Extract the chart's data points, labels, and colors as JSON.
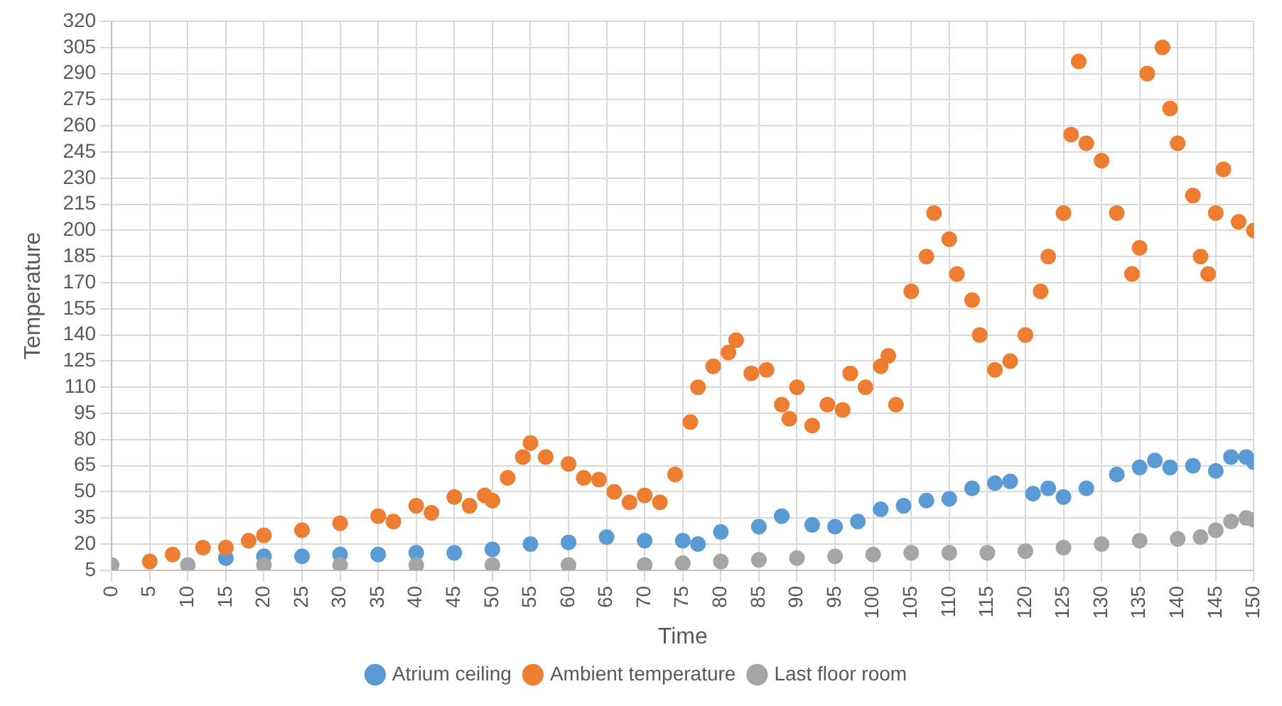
{
  "chart_data": {
    "type": "scatter",
    "xlabel": "Time",
    "ylabel": "Temperature",
    "xlim": [
      0,
      150
    ],
    "xticks": [
      0,
      5,
      10,
      15,
      20,
      25,
      30,
      35,
      40,
      45,
      50,
      55,
      60,
      65,
      70,
      75,
      80,
      85,
      90,
      95,
      100,
      105,
      110,
      115,
      120,
      125,
      130,
      135,
      140,
      145,
      150
    ],
    "ylim": [
      5,
      320
    ],
    "yticks": [
      5,
      20,
      35,
      50,
      65,
      80,
      95,
      110,
      125,
      140,
      155,
      170,
      185,
      200,
      215,
      230,
      245,
      260,
      275,
      290,
      305,
      320
    ],
    "grid": true,
    "legend": "bottom",
    "marker": "circle",
    "series": [
      {
        "name": "Atrium ceiling",
        "color": "#5b9bd5",
        "x": [
          15,
          20,
          25,
          30,
          35,
          40,
          45,
          50,
          55,
          60,
          65,
          70,
          75,
          77,
          80,
          85,
          88,
          92,
          95,
          98,
          101,
          104,
          107,
          110,
          113,
          116,
          118,
          121,
          123,
          125,
          128,
          132,
          135,
          137,
          139,
          142,
          145,
          147,
          149,
          150
        ],
        "values": [
          12,
          13,
          13,
          14,
          14,
          15,
          15,
          17,
          20,
          21,
          24,
          22,
          22,
          20,
          27,
          30,
          36,
          31,
          30,
          33,
          40,
          42,
          45,
          46,
          52,
          55,
          56,
          49,
          52,
          47,
          52,
          60,
          64,
          68,
          64,
          65,
          62,
          70,
          70,
          67
        ]
      },
      {
        "name": "Ambient temperature",
        "color": "#ed7d31",
        "x": [
          5,
          8,
          12,
          15,
          18,
          20,
          25,
          30,
          35,
          37,
          40,
          42,
          45,
          47,
          49,
          50,
          52,
          54,
          55,
          57,
          60,
          62,
          64,
          66,
          68,
          70,
          72,
          74,
          76,
          77,
          79,
          81,
          82,
          84,
          86,
          88,
          89,
          90,
          92,
          94,
          96,
          97,
          99,
          101,
          102,
          103,
          105,
          107,
          108,
          110,
          111,
          113,
          114,
          116,
          118,
          120,
          122,
          123,
          125,
          126,
          127,
          128,
          130,
          132,
          134,
          135,
          136,
          138,
          139,
          140,
          142,
          143,
          144,
          145,
          146,
          148,
          150
        ],
        "values": [
          10,
          14,
          18,
          18,
          22,
          25,
          28,
          32,
          36,
          33,
          42,
          38,
          47,
          42,
          48,
          45,
          58,
          70,
          78,
          70,
          66,
          58,
          57,
          50,
          44,
          48,
          44,
          60,
          90,
          110,
          122,
          130,
          137,
          118,
          120,
          100,
          92,
          110,
          88,
          100,
          97,
          118,
          110,
          122,
          128,
          100,
          165,
          185,
          210,
          195,
          175,
          160,
          140,
          120,
          125,
          140,
          165,
          185,
          210,
          255,
          297,
          250,
          240,
          210,
          175,
          190,
          290,
          305,
          270,
          250,
          220,
          185,
          175,
          210,
          235,
          205,
          200
        ]
      },
      {
        "name": "Last floor room",
        "color": "#a5a5a5",
        "x": [
          0,
          10,
          20,
          30,
          40,
          50,
          60,
          70,
          75,
          80,
          85,
          90,
          95,
          100,
          105,
          110,
          115,
          120,
          125,
          130,
          135,
          140,
          143,
          145,
          147,
          149,
          150
        ],
        "values": [
          8,
          8,
          8,
          8,
          8,
          8,
          8,
          8,
          9,
          10,
          11,
          12,
          13,
          14,
          15,
          15,
          15,
          16,
          18,
          20,
          22,
          23,
          24,
          28,
          33,
          35,
          34
        ]
      }
    ]
  }
}
